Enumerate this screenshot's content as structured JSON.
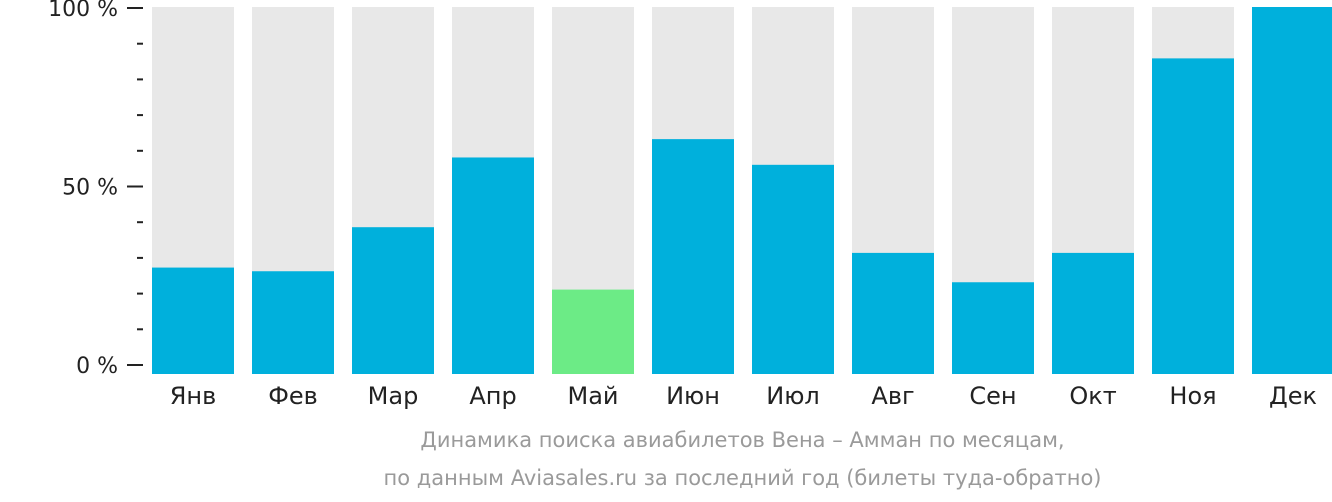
{
  "chart_data": {
    "type": "bar",
    "categories": [
      "Янв",
      "Фев",
      "Мар",
      "Апр",
      "Май",
      "Июн",
      "Июл",
      "Авг",
      "Сен",
      "Окт",
      "Ноя",
      "Дек"
    ],
    "values": [
      29,
      28,
      40,
      59,
      23,
      64,
      57,
      33,
      25,
      33,
      86,
      100
    ],
    "highlight_index": 4,
    "ylim": [
      0,
      100
    ],
    "yticks": [
      {
        "value": 0,
        "label": "0 %"
      },
      {
        "value": 50,
        "label": "50 %"
      },
      {
        "value": 100,
        "label": "100 %"
      }
    ],
    "minor_tick_step": 10,
    "grid": false,
    "colors": {
      "bar": "#00b0dc",
      "highlight": "#6ceb86",
      "background_bar": "#e8e8e8",
      "axis": "#222222"
    }
  },
  "caption": {
    "line1": "Динамика поиска авиабилетов Вена – Амман по месяцам,",
    "line2": "по данным Aviasales.ru за последний год (билеты туда-обратно)"
  }
}
